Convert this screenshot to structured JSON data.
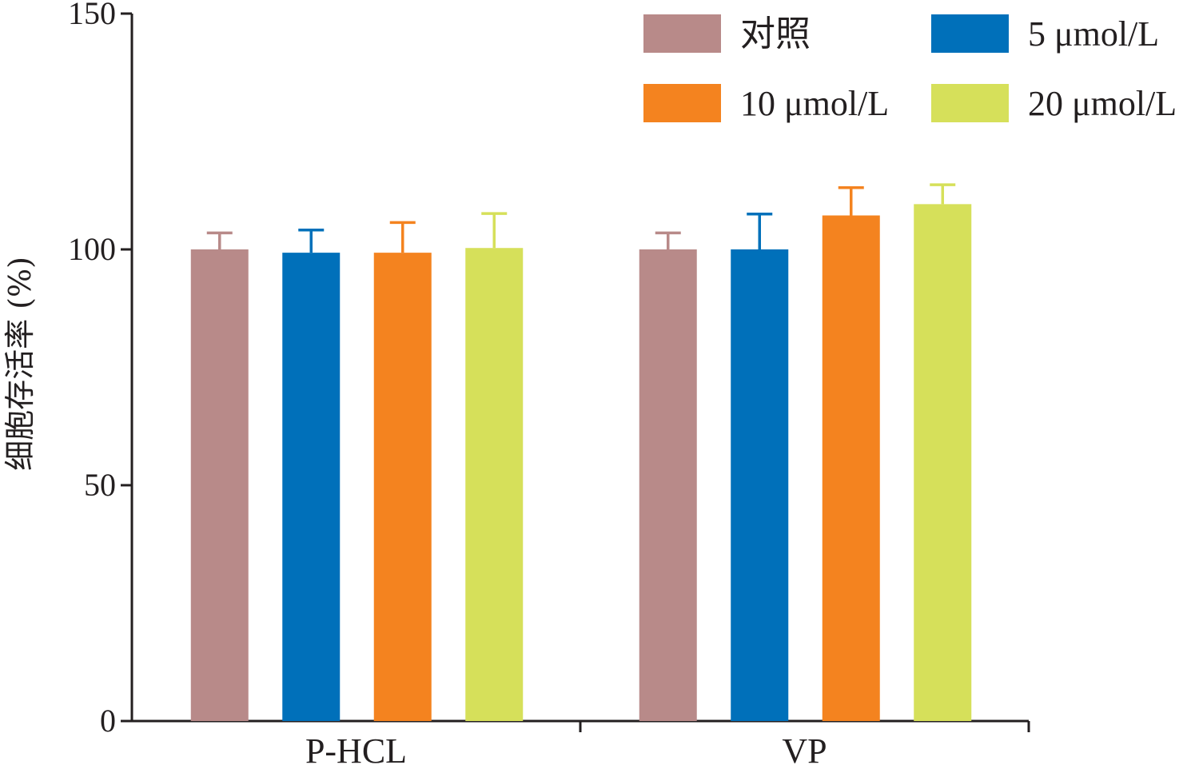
{
  "chart_data": {
    "type": "bar",
    "title": "",
    "xlabel": "",
    "ylabel": "细胞存活率 (%)",
    "ylim": [
      0,
      150
    ],
    "yticks": [
      0,
      50,
      100,
      150
    ],
    "grid": false,
    "legend_position": "top-right",
    "categories": [
      "P-HCL",
      "VP"
    ],
    "series": [
      {
        "name": "对照",
        "color": "#b88a89",
        "values": [
          100.0,
          100.0
        ],
        "errors": [
          3.5,
          3.5
        ]
      },
      {
        "name": "5 μmol/L",
        "color": "#0070ba",
        "values": [
          99.3,
          100.0
        ],
        "errors": [
          4.8,
          7.5
        ]
      },
      {
        "name": "10 μmol/L",
        "color": "#f4831f",
        "values": [
          99.3,
          107.2
        ],
        "errors": [
          6.4,
          5.9
        ]
      },
      {
        "name": "20 μmol/L",
        "color": "#d6e05a",
        "values": [
          100.3,
          109.6
        ],
        "errors": [
          7.3,
          4.1
        ]
      }
    ]
  }
}
